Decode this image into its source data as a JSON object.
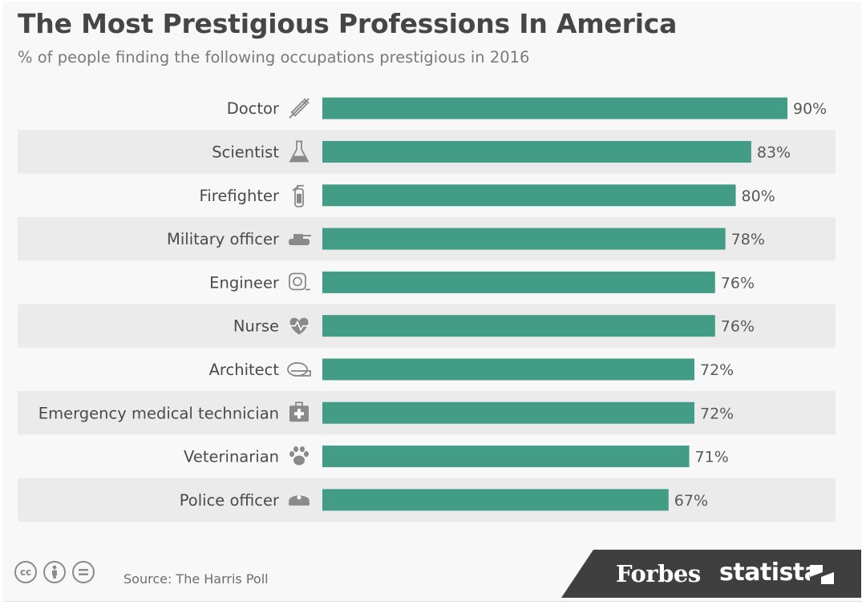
{
  "title": "The Most Prestigious Professions In America",
  "subtitle": "% of people finding the following occupations prestigious in 2016",
  "footer": {
    "source": "Source: The Harris Poll",
    "license_icons": [
      "cc-icon",
      "by-icon",
      "nd-icon"
    ],
    "brand_forbes": "Forbes",
    "brand_statista": "statista"
  },
  "colors": {
    "bar": "#439d86",
    "stripe": "#ebebeb",
    "label": "#4a4a4a",
    "value": "#5a5a5a"
  },
  "chart_data": {
    "type": "bar",
    "orientation": "horizontal",
    "categories": [
      "Doctor",
      "Scientist",
      "Firefighter",
      "Military officer",
      "Engineer",
      "Nurse",
      "Architect",
      "Emergency medical technician",
      "Veterinarian",
      "Police officer"
    ],
    "values": [
      90,
      83,
      80,
      78,
      76,
      76,
      72,
      72,
      71,
      67
    ],
    "value_labels": [
      "90%",
      "83%",
      "80%",
      "78%",
      "76%",
      "76%",
      "72%",
      "72%",
      "71%",
      "67%"
    ],
    "icons": [
      "syringe-icon",
      "flask-icon",
      "fire-extinguisher-icon",
      "tank-icon",
      "tape-measure-icon",
      "heartbeat-icon",
      "measuring-tape-icon",
      "first-aid-kit-icon",
      "paw-icon",
      "police-cap-icon"
    ],
    "unit": "%",
    "xlim": [
      0,
      90
    ],
    "grid": false,
    "legend": "none"
  }
}
